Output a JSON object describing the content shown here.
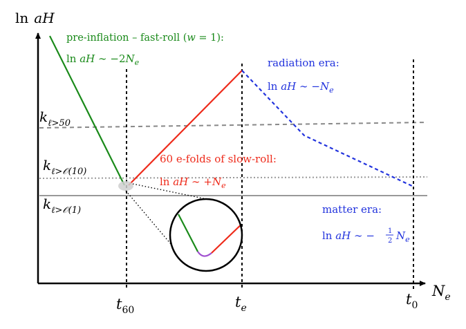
{
  "axes": {
    "y_label_ln": "ln",
    "y_label_var": "aH",
    "x_label_base": "N",
    "x_label_sub": "e"
  },
  "times": {
    "t60": {
      "base": "t",
      "sub": "60"
    },
    "te": {
      "base": "t",
      "sub": "e"
    },
    "t0": {
      "base": "t",
      "sub": "0"
    }
  },
  "levels": {
    "k50": {
      "base": "k",
      "sub": "ℓ>50"
    },
    "k10": {
      "base": "k",
      "sub": "ℓ>𝒪(10)"
    },
    "k1": {
      "base": "k",
      "sub": "ℓ>𝒪(1)"
    }
  },
  "annotations": {
    "preinflation_title": "pre-inflation – fast-roll (",
    "preinflation_w": "w",
    "preinflation_eq": " = 1):",
    "preinflation_formula_a": "ln ",
    "preinflation_formula_b": "aH",
    "preinflation_formula_c": " ∼ −2",
    "preinflation_formula_d": "N",
    "preinflation_formula_e": "e",
    "slowroll_title": "60 e-folds of slow-roll:",
    "slowroll_formula_a": "ln ",
    "slowroll_formula_b": "aH",
    "slowroll_formula_c": " ∼ +",
    "slowroll_formula_d": "N",
    "slowroll_formula_e": "e",
    "radiation_title": "radiation era:",
    "radiation_formula_a": "ln ",
    "radiation_formula_b": "aH",
    "radiation_formula_c": " ∼ −",
    "radiation_formula_d": "N",
    "radiation_formula_e": "e",
    "matter_title": "matter era:",
    "matter_formula_a": "ln ",
    "matter_formula_b": "aH",
    "matter_formula_c": " ∼ −",
    "matter_frac_num": "1",
    "matter_frac_den": "2",
    "matter_formula_d": "N",
    "matter_formula_e": "e"
  },
  "colors": {
    "fast_roll": "#1a8a1a",
    "slow_roll": "#ee2a1a",
    "radiation": "#2233dd",
    "transition": "#a050d0",
    "level_gray": "#888888"
  }
}
